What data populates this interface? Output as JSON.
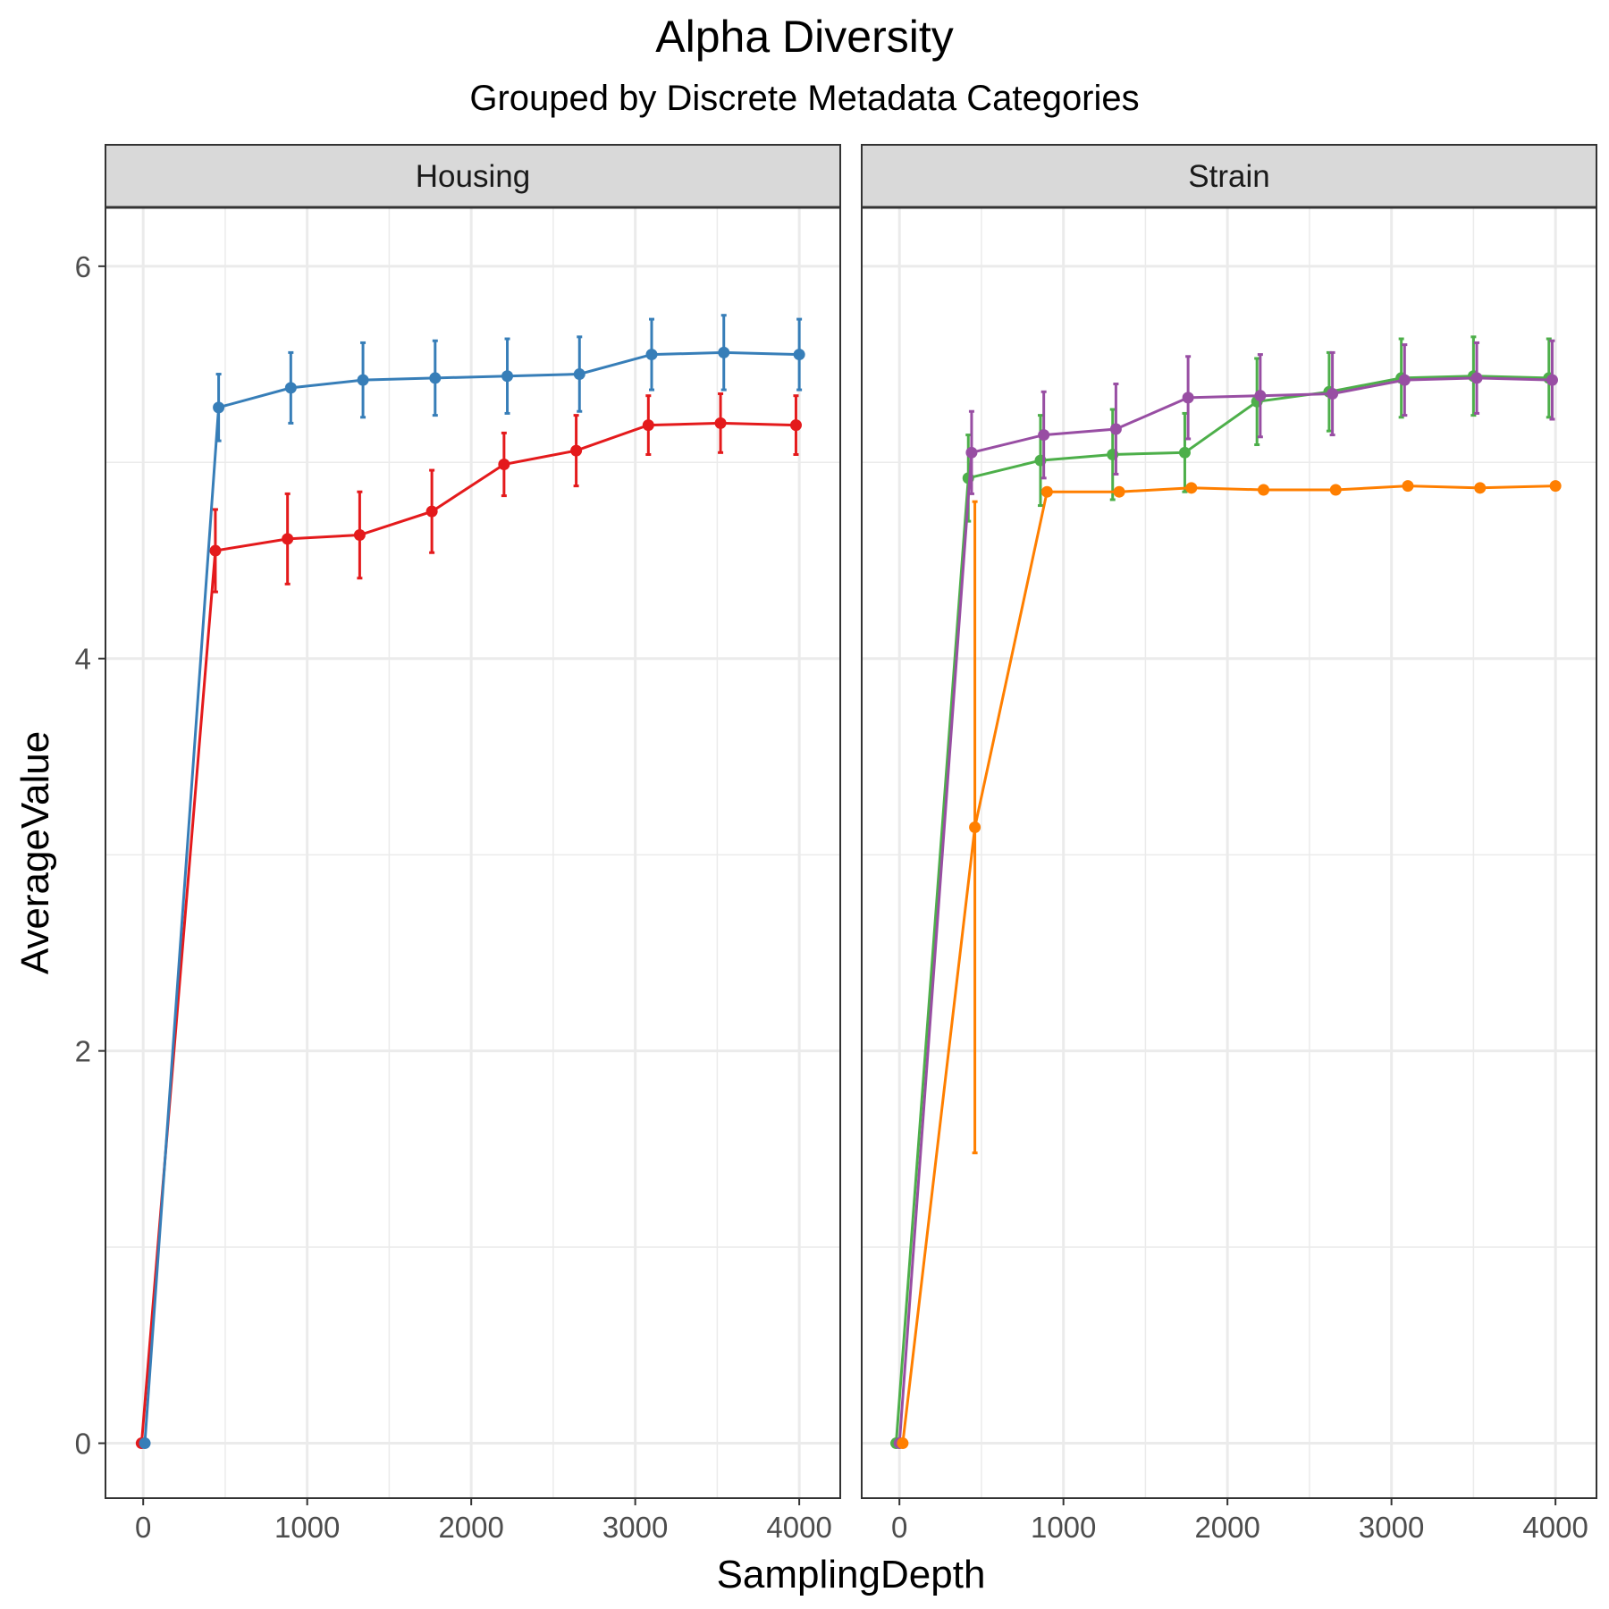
{
  "chart_data": {
    "type": "line",
    "title": "Alpha Diversity",
    "subtitle": "Grouped by Discrete Metadata Categories",
    "xlabel": "SamplingDepth",
    "ylabel": "AverageValue",
    "xlim": [
      -230,
      4250
    ],
    "ylim": [
      -0.28,
      6.3
    ],
    "x_ticks": [
      0,
      1000,
      2000,
      3000,
      4000
    ],
    "y_ticks": [
      0,
      2,
      4,
      6
    ],
    "grid": true,
    "legend": "none",
    "panels": [
      {
        "name": "Housing",
        "series": [
          {
            "color": "#e41a1c",
            "x": [
              -10,
              440,
              880,
              1320,
              1760,
              2200,
              2640,
              3080,
              3520,
              3980
            ],
            "y": [
              0,
              4.55,
              4.61,
              4.63,
              4.75,
              4.99,
              5.06,
              5.19,
              5.2,
              5.19
            ],
            "err": [
              0,
              0.21,
              0.23,
              0.22,
              0.21,
              0.16,
              0.18,
              0.15,
              0.15,
              0.15
            ]
          },
          {
            "color": "#377eb8",
            "x": [
              10,
              460,
              900,
              1340,
              1780,
              2220,
              2660,
              3100,
              3540,
              4000
            ],
            "y": [
              0,
              5.28,
              5.38,
              5.42,
              5.43,
              5.44,
              5.45,
              5.55,
              5.56,
              5.55
            ],
            "err": [
              0,
              0.17,
              0.18,
              0.19,
              0.19,
              0.19,
              0.19,
              0.18,
              0.19,
              0.18
            ]
          }
        ]
      },
      {
        "name": "Strain",
        "series": [
          {
            "color": "#4daf4a",
            "x": [
              -20,
              420,
              860,
              1300,
              1740,
              2180,
              2620,
              3060,
              3500,
              3960
            ],
            "y": [
              0,
              4.92,
              5.01,
              5.04,
              5.05,
              5.31,
              5.36,
              5.43,
              5.44,
              5.43
            ],
            "err": [
              0,
              0.22,
              0.23,
              0.23,
              0.2,
              0.22,
              0.2,
              0.2,
              0.2,
              0.2
            ]
          },
          {
            "color": "#984ea3",
            "x": [
              0,
              440,
              880,
              1320,
              1760,
              2200,
              2640,
              3080,
              3520,
              3980
            ],
            "y": [
              0,
              5.05,
              5.14,
              5.17,
              5.33,
              5.34,
              5.35,
              5.42,
              5.43,
              5.42
            ],
            "err": [
              0,
              0.21,
              0.22,
              0.23,
              0.21,
              0.21,
              0.21,
              0.18,
              0.18,
              0.2
            ]
          },
          {
            "color": "#ff7f00",
            "x": [
              20,
              460,
              900,
              1340,
              1780,
              2220,
              2660,
              3100,
              3540,
              4000
            ],
            "y": [
              0,
              3.14,
              4.85,
              4.85,
              4.87,
              4.86,
              4.86,
              4.88,
              4.87,
              4.88
            ],
            "err": [
              0,
              1.66,
              0,
              0,
              0,
              0,
              0,
              0,
              0,
              0
            ]
          }
        ]
      }
    ]
  }
}
